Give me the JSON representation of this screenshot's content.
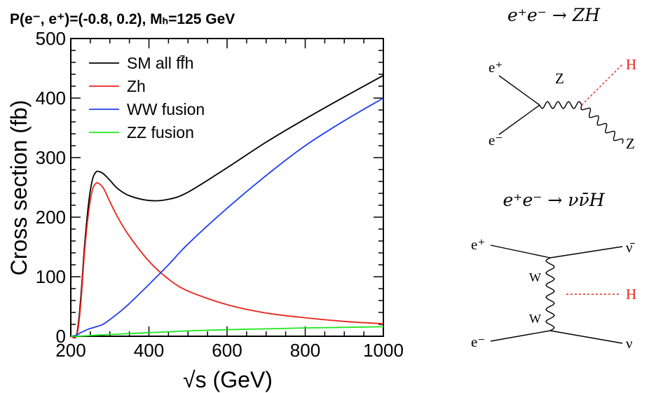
{
  "chart_data": {
    "type": "line",
    "title": "P(e⁻, e⁺)=(-0.8, 0.2), Mₕ=125 GeV",
    "xlabel": "√s (GeV)",
    "ylabel": "Cross section (fb)",
    "xlim": [
      200,
      1000
    ],
    "ylim": [
      0,
      500
    ],
    "xticks": [
      200,
      400,
      600,
      800,
      1000
    ],
    "yticks": [
      0,
      100,
      200,
      300,
      400,
      500
    ],
    "legend_position": "top-left",
    "x": [
      215,
      225,
      235,
      245,
      255,
      265,
      275,
      285,
      300,
      320,
      350,
      400,
      450,
      500,
      600,
      700,
      800,
      900,
      1000
    ],
    "series": [
      {
        "name": "SM all ff̄h",
        "color": "#000000",
        "values": [
          3,
          60,
          150,
          220,
          262,
          276,
          276,
          272,
          262,
          248,
          236,
          228,
          230,
          242,
          283,
          326,
          365,
          402,
          438
        ]
      },
      {
        "name": "Zh",
        "color": "#e8251c",
        "values": [
          1,
          50,
          140,
          205,
          245,
          257,
          255,
          247,
          226,
          200,
          168,
          126,
          96,
          76,
          53,
          39,
          31,
          25,
          21
        ]
      },
      {
        "name": "WW fusion",
        "color": "#1f3ff0",
        "values": [
          2,
          6,
          9,
          12,
          14,
          16,
          18,
          21,
          28,
          38,
          55,
          87,
          120,
          155,
          215,
          270,
          320,
          362,
          400
        ]
      },
      {
        "name": "ZZ fusion",
        "color": "#1ee81e",
        "values": [
          0,
          0.3,
          0.6,
          1,
          1.4,
          1.8,
          2.2,
          2.6,
          3,
          3.5,
          4.5,
          6,
          7.5,
          9,
          11,
          12.5,
          14,
          15,
          16
        ]
      }
    ]
  },
  "diagrams": {
    "zh": {
      "title": "e⁺e⁻ → ZH",
      "labels": {
        "e_plus": "e⁺",
        "e_minus": "e⁻",
        "z_internal": "Z",
        "h_out": "H",
        "z_out": "Z"
      }
    },
    "vvh": {
      "title": "e⁺e⁻ → νν̄H",
      "labels": {
        "e_plus": "e⁺",
        "e_minus": "e⁻",
        "w_upper": "W",
        "w_lower": "W",
        "nubar_out": "ν̄",
        "h_out": "H",
        "nu_out": "ν"
      }
    },
    "colors": {
      "higgs": "#e8251c"
    }
  }
}
